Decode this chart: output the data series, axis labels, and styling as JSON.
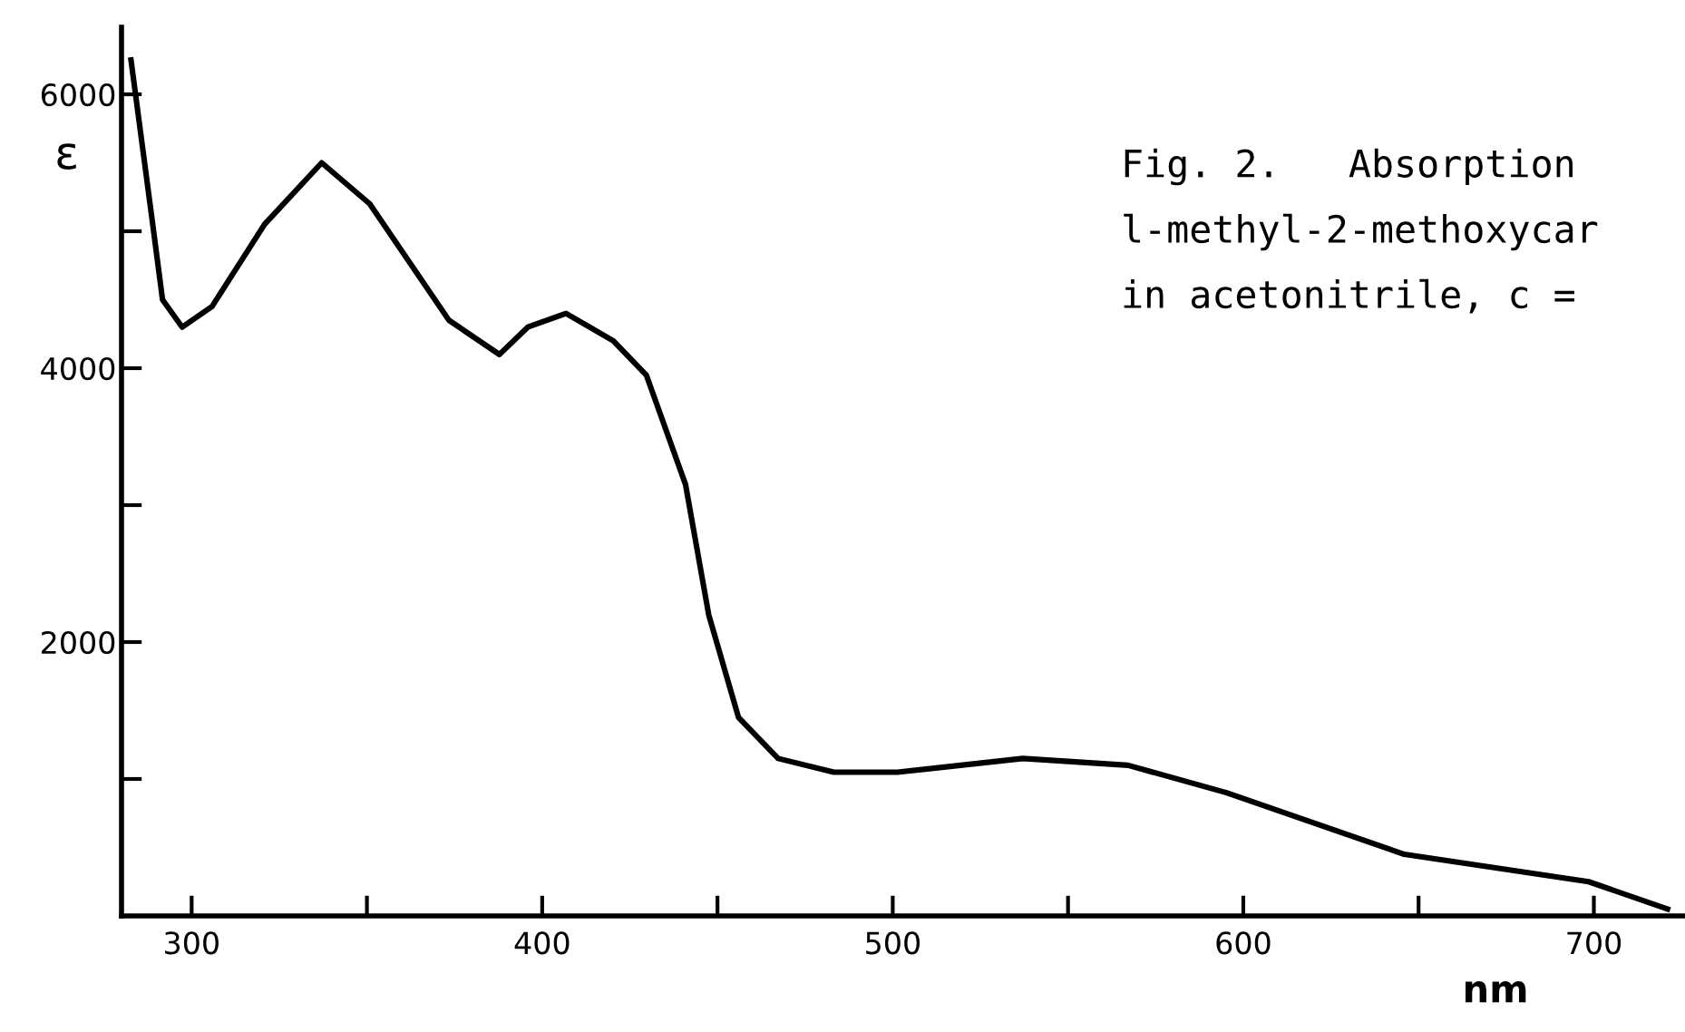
{
  "chart_data": {
    "type": "line",
    "xlabel": "nm",
    "ylabel": "ε",
    "x": [
      282.7,
      288.9,
      291.7,
      297.3,
      305.8,
      320.8,
      337.1,
      350.8,
      373.4,
      387.8,
      395.9,
      406.8,
      420.3,
      429.7,
      440.9,
      447.5,
      456,
      467.3,
      483.2,
      501.4,
      537.1,
      567.1,
      595.2,
      645.9,
      698.5,
      721
    ],
    "series": [
      {
        "color": "#000000",
        "values": [
          6250,
          5050,
          4500,
          4300,
          4450,
          5050,
          5500,
          5200,
          4350,
          4100,
          4300,
          4400,
          4200,
          3950,
          3150,
          2200,
          1450,
          1150,
          1050,
          1050,
          1150,
          1100,
          900,
          450,
          250,
          50
        ]
      }
    ],
    "xlim": [
      280,
      726
    ],
    "ylim": [
      0,
      6490
    ],
    "xticks": [
      300,
      {
        "value": 350,
        "label": null
      },
      400,
      {
        "value": 450,
        "label": null
      },
      500,
      {
        "value": 550,
        "label": null
      },
      600,
      {
        "value": 650,
        "label": null
      },
      700
    ],
    "yticks": [
      {
        "value": 1000,
        "label": null
      },
      2000,
      {
        "value": 3000,
        "label": null
      },
      4000,
      {
        "value": 5000,
        "label": null
      },
      6000
    ],
    "annotations": [
      "Fig. 2.   Absorption",
      "l-methyl-2-methoxycar",
      "in acetonitrile, c ="
    ],
    "grid": false,
    "legend": false,
    "marker": "none",
    "line_style": "solid"
  }
}
